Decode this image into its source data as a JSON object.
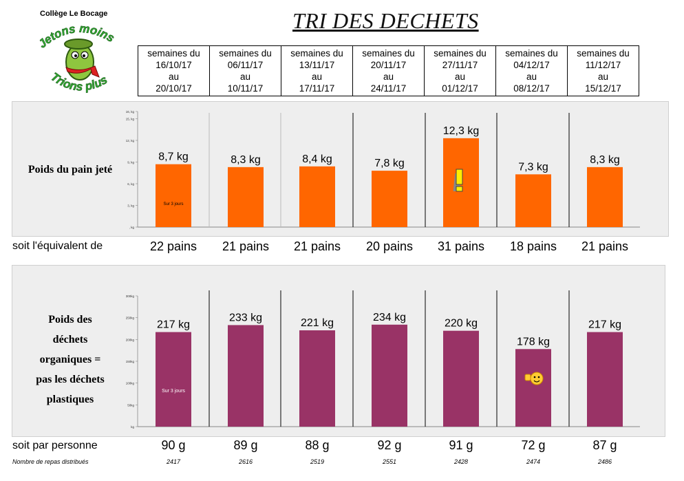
{
  "header": {
    "school": "Collège Le Bocage",
    "title": "TRI DES DECHETS",
    "logo_line1": "Jetons moins",
    "logo_line2": "Trions plus"
  },
  "weeks": [
    {
      "l1": "semaines du",
      "l2": "16/10/17",
      "l3": "au",
      "l4": "20/10/17"
    },
    {
      "l1": "semaines du",
      "l2": "06/11/17",
      "l3": "au",
      "l4": "10/11/17"
    },
    {
      "l1": "semaines du",
      "l2": "13/11/17",
      "l3": "au",
      "l4": "17/11/17"
    },
    {
      "l1": "semaines du",
      "l2": "20/11/17",
      "l3": "au",
      "l4": "24/11/17"
    },
    {
      "l1": "semaines du",
      "l2": "27/11/17",
      "l3": "au",
      "l4": "01/12/17"
    },
    {
      "l1": "semaines du",
      "l2": "04/12/17",
      "l3": "au",
      "l4": "08/12/17"
    },
    {
      "l1": "semaines du",
      "l2": "11/12/17",
      "l3": "au",
      "l4": "15/12/17"
    }
  ],
  "bread": {
    "label": "Poids du pain jeté",
    "equiv_label": "soit l'équivalent de",
    "equiv": [
      "22 pains",
      "21 pains",
      "21 pains",
      "20 pains",
      "31 pains",
      "18 pains",
      "21 pains"
    ],
    "note": "Sur 3 jours"
  },
  "organic": {
    "label_lines": [
      "Poids des",
      "déchets",
      "organiques =",
      "pas les déchets",
      "plastiques"
    ],
    "per_person_label": "soit par personne",
    "per_person": [
      "90 g",
      "89 g",
      "88 g",
      "92 g",
      "91 g",
      "72 g",
      "87 g"
    ],
    "note": "Sur 3 jours"
  },
  "meals": {
    "label": "Nombre de repas distribués",
    "values": [
      "2417",
      "2616",
      "2519",
      "2551",
      "2428",
      "2474",
      "2486"
    ]
  },
  "colors": {
    "bread_bar": "#ff6600",
    "organic_bar": "#993366",
    "panel_bg": "#eeeeee"
  },
  "chart_data": [
    {
      "type": "bar",
      "title": "Poids du pain jeté",
      "ylabel": "kg",
      "ylim": [
        0,
        16
      ],
      "yticks": [
        "16, kg",
        "15, kg",
        "12, kg",
        "9, kg",
        "6, kg",
        "3, kg",
        ", kg"
      ],
      "ytick_values": [
        16,
        15,
        12,
        9,
        6,
        3,
        0
      ],
      "categories": [
        "16/10/17-20/10/17",
        "06/11/17-10/11/17",
        "13/11/17-17/11/17",
        "20/11/17-24/11/17",
        "27/11/17-01/12/17",
        "04/12/17-08/12/17",
        "11/12/17-15/12/17"
      ],
      "values": [
        8.7,
        8.3,
        8.4,
        7.8,
        12.3,
        7.3,
        8.3
      ],
      "labels": [
        "8,7 kg",
        "8,3 kg",
        "8,4 kg",
        "7,8 kg",
        "12,3 kg",
        "7,3 kg",
        "8,3 kg"
      ]
    },
    {
      "type": "bar",
      "title": "Poids des déchets organiques = pas les déchets plastiques",
      "ylabel": "kg",
      "ylim": [
        0,
        300
      ],
      "yticks": [
        "300kg",
        "250kg",
        "200kg",
        "150kg",
        "100kg",
        "50kg",
        "kg"
      ],
      "ytick_values": [
        300,
        250,
        200,
        150,
        100,
        50,
        0
      ],
      "categories": [
        "16/10/17-20/10/17",
        "06/11/17-10/11/17",
        "13/11/17-17/11/17",
        "20/11/17-24/11/17",
        "27/11/17-01/12/17",
        "04/12/17-08/12/17",
        "11/12/17-15/12/17"
      ],
      "values": [
        217,
        233,
        221,
        234,
        220,
        178,
        217
      ],
      "labels": [
        "217 kg",
        "233 kg",
        "221 kg",
        "234 kg",
        "220 kg",
        "178 kg",
        "217 kg"
      ]
    }
  ]
}
